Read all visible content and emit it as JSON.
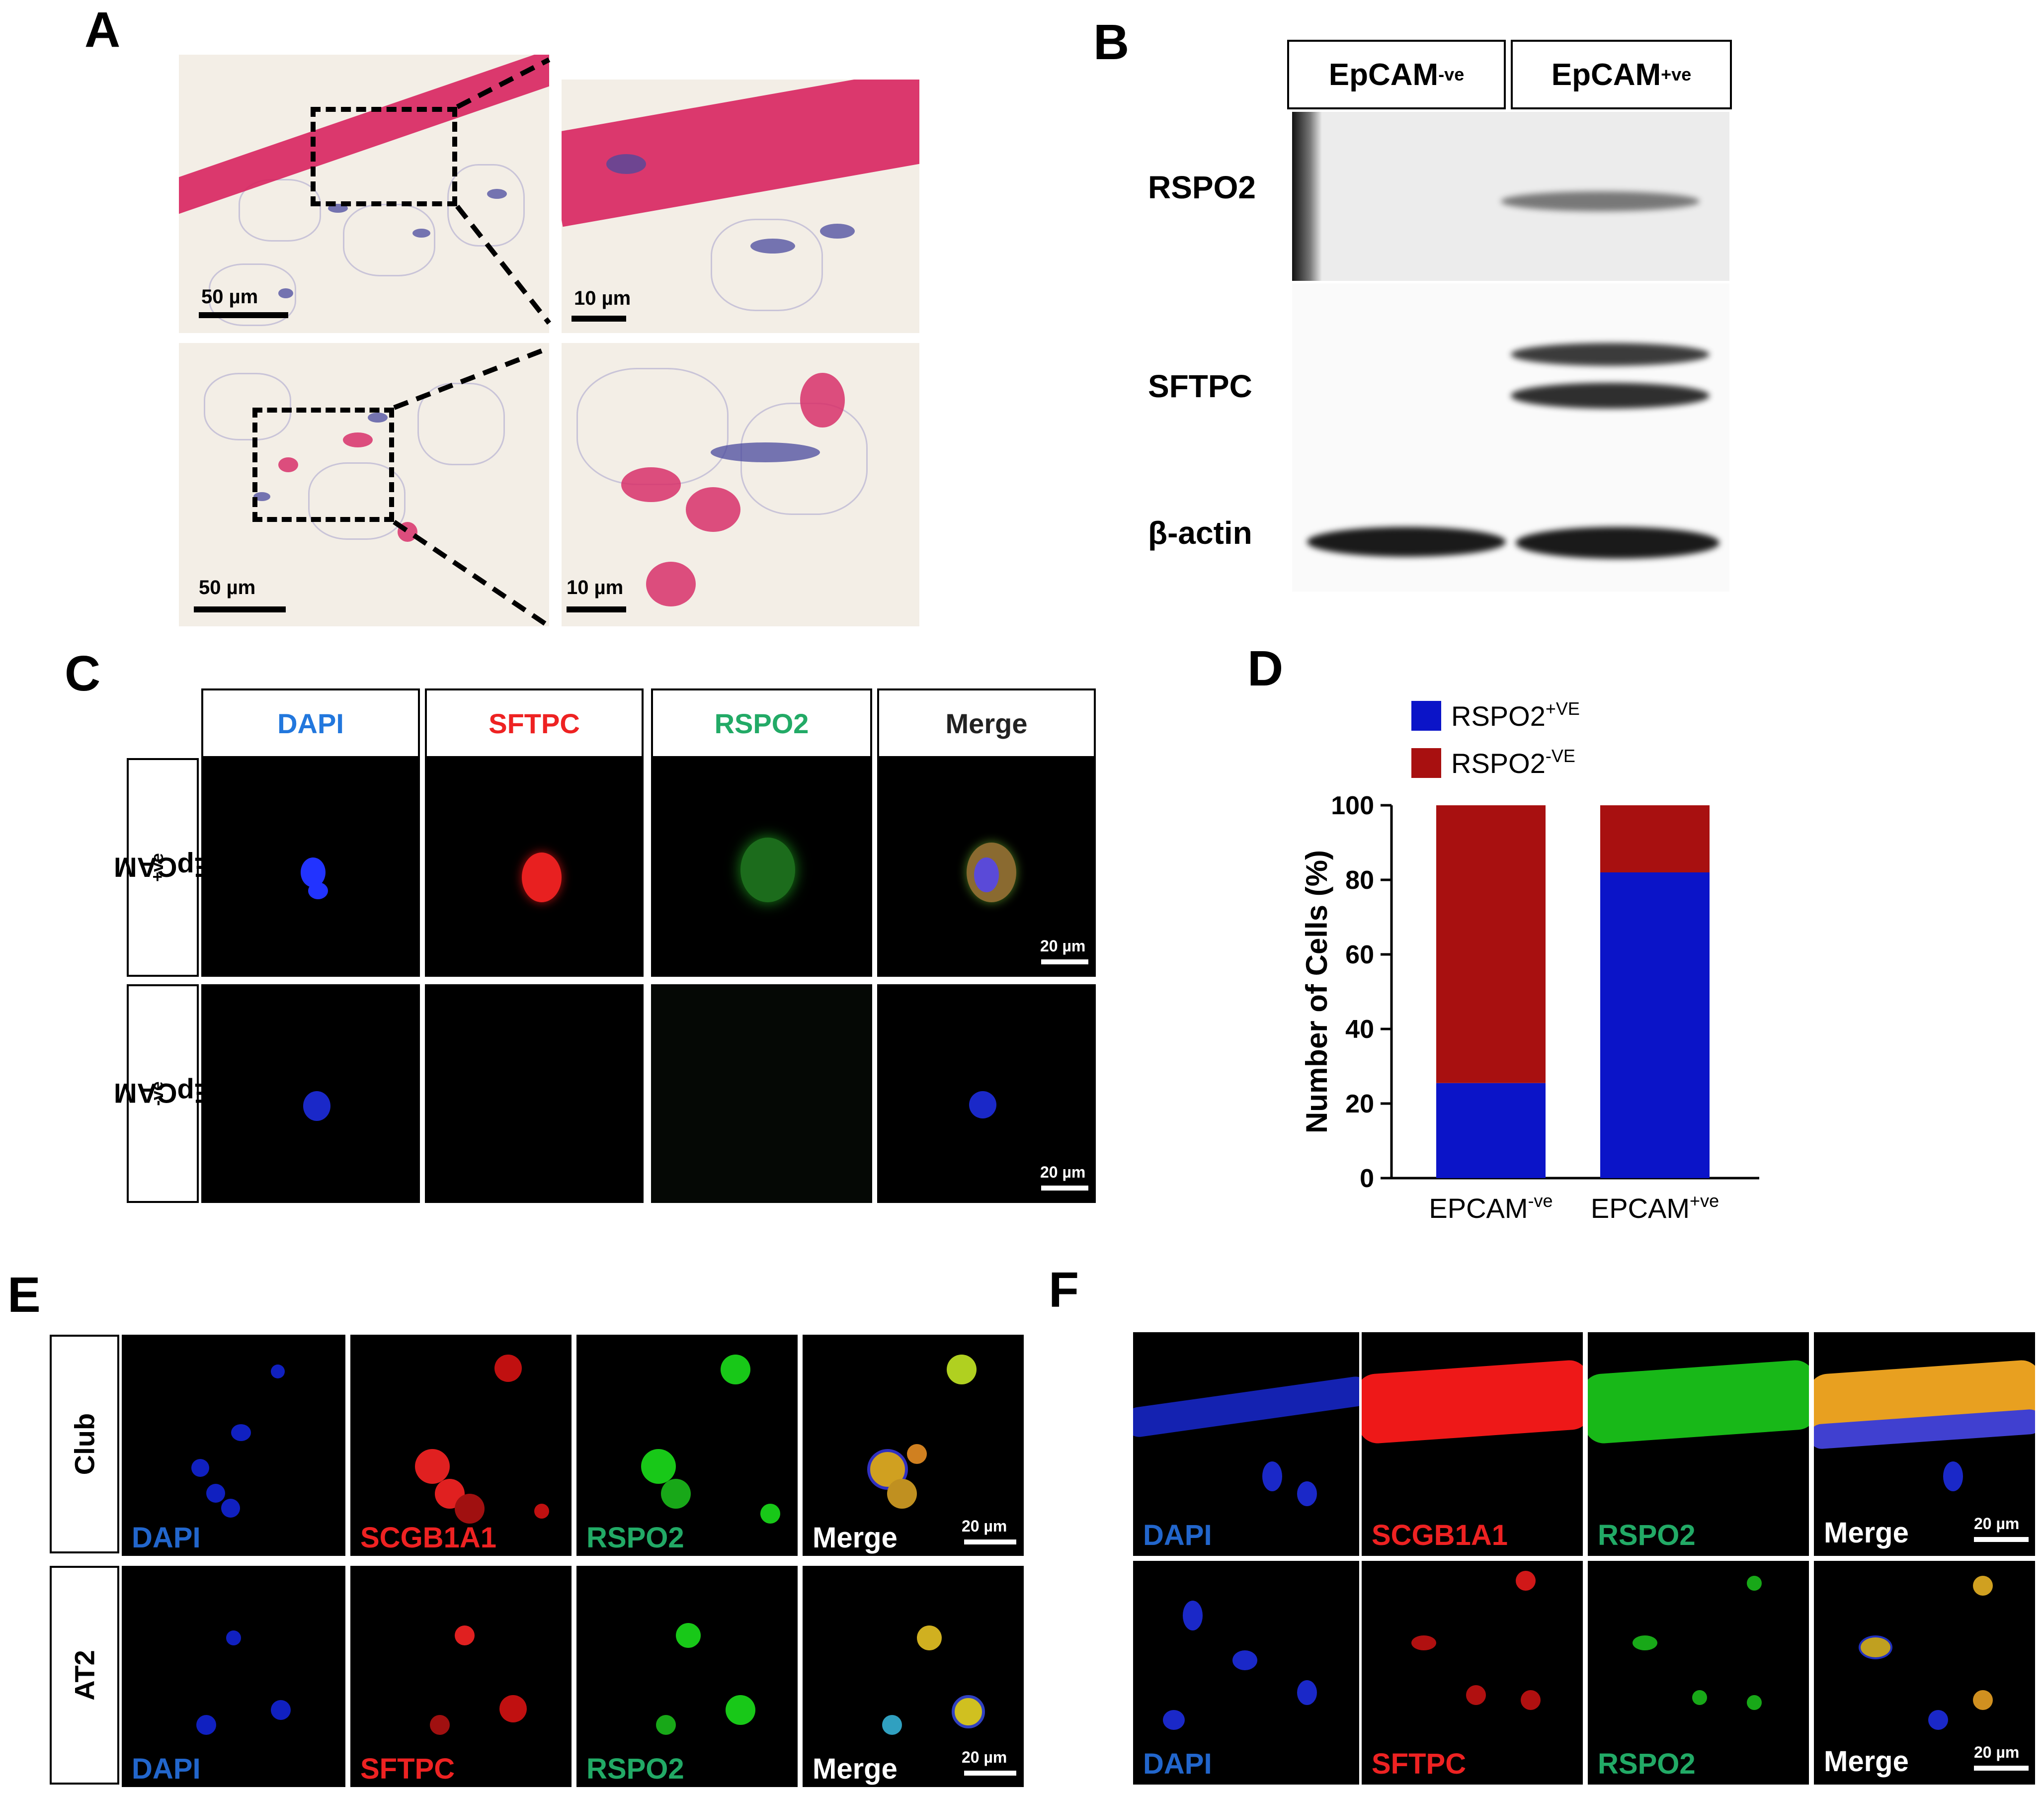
{
  "panels": {
    "A": {
      "letter": "A",
      "scale_top_left": "50 µm",
      "scale_top_right": "10 µm",
      "scale_bottom_left": "50 µm",
      "scale_bottom_right": "10 µm"
    },
    "B": {
      "letter": "B",
      "lane_neg": "EpCAM",
      "lane_neg_sup": "-ve",
      "lane_pos": "EpCAM",
      "lane_pos_sup": "+ve",
      "row_rspo2": "RSPO2",
      "row_sftpc": "SFTPC",
      "row_actin": "β-actin"
    },
    "C": {
      "letter": "C",
      "headers": [
        "DAPI",
        "SFTPC",
        "RSPO2",
        "Merge"
      ],
      "header_colors": [
        "#2277dd",
        "#ee2222",
        "#22aa66",
        "#222222"
      ],
      "row1": "EpCAM",
      "row1_sup": "+ve",
      "row2": "EpCAM",
      "row2_sup": "-ve",
      "scale1": "20 µm",
      "scale2": "20 µm"
    },
    "D": {
      "letter": "D"
    },
    "E": {
      "letter": "E",
      "row1": "Club",
      "row2": "AT2",
      "row1_labels": [
        "DAPI",
        "SCGB1A1",
        "RSPO2",
        "Merge"
      ],
      "row2_labels": [
        "DAPI",
        "SFTPC",
        "RSPO2",
        "Merge"
      ],
      "scale1": "20 µm",
      "scale2": "20 µm"
    },
    "F": {
      "letter": "F",
      "row1_labels": [
        "DAPI",
        "SCGB1A1",
        "RSPO2",
        "Merge"
      ],
      "row2_labels": [
        "DAPI",
        "SFTPC",
        "RSPO2",
        "Merge"
      ],
      "scale1": "20 µm",
      "scale2": "20 µm"
    }
  },
  "channel_label_colors": [
    "#2266cc",
    "#ee2222",
    "#22aa66",
    "#ffffff"
  ],
  "chart_data": {
    "type": "bar",
    "stacked": true,
    "categories": [
      "EPCAM",
      "EPCAM"
    ],
    "category_sups": [
      "-ve",
      "+ve"
    ],
    "series": [
      {
        "name": "RSPO2",
        "name_sup": "+VE",
        "color": "#0b14c8",
        "values": [
          25.5,
          82
        ]
      },
      {
        "name": "RSPO2",
        "name_sup": "-VE",
        "color": "#a81010",
        "values": [
          74.5,
          18
        ]
      }
    ],
    "ylabel": "Number of Cells (%)",
    "ylim": [
      0,
      100
    ],
    "yticks": [
      0,
      20,
      40,
      60,
      80,
      100
    ],
    "legend_position": "top-left",
    "grid": false
  }
}
